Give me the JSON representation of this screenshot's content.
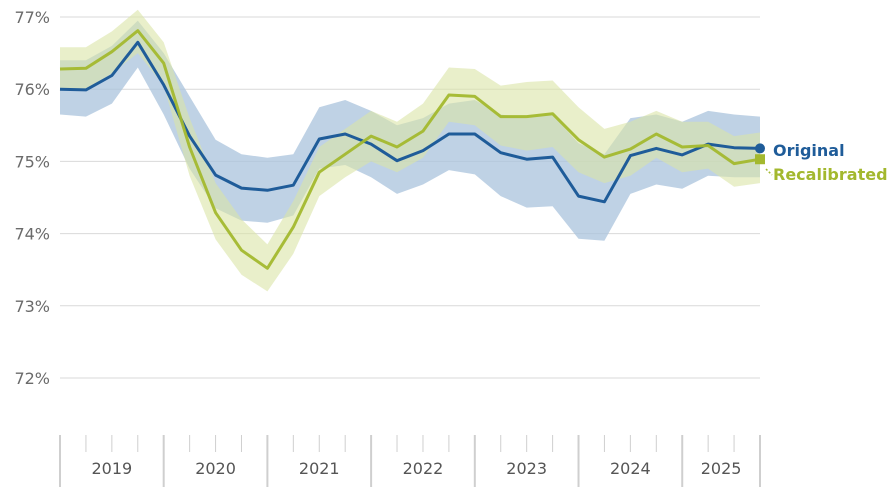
{
  "chart_data": {
    "type": "line",
    "title": "",
    "xlabel": "",
    "ylabel": "",
    "ylim": [
      72,
      77
    ],
    "y_ticks": [
      "72%",
      "73%",
      "74%",
      "75%",
      "76%",
      "77%"
    ],
    "grid": true,
    "legend_placement": "right, at line ends",
    "year_labels": [
      "2019",
      "2020",
      "2021",
      "2022",
      "2023",
      "2024",
      "2025"
    ],
    "periods_per_year": 4,
    "start_year": 2019,
    "series": [
      {
        "name": "Original",
        "color": "#1f5c99",
        "band_color": "#a9c3dc",
        "values": [
          76.0,
          75.99,
          76.19,
          76.65,
          76.06,
          75.35,
          74.81,
          74.63,
          74.6,
          74.67,
          75.31,
          75.38,
          75.24,
          75.01,
          75.15,
          75.38,
          75.38,
          75.12,
          75.03,
          75.06,
          74.52,
          74.44,
          75.08,
          75.18,
          75.09,
          75.24,
          75.19,
          75.18
        ],
        "upper": [
          76.4,
          76.4,
          76.6,
          76.95,
          76.5,
          75.9,
          75.3,
          75.1,
          75.05,
          75.1,
          75.75,
          75.85,
          75.7,
          75.5,
          75.6,
          75.8,
          75.85,
          75.65,
          75.6,
          75.65,
          75.25,
          75.1,
          75.6,
          75.65,
          75.55,
          75.7,
          75.65,
          75.62
        ],
        "lower": [
          75.65,
          75.62,
          75.8,
          76.3,
          75.65,
          74.9,
          74.35,
          74.18,
          74.15,
          74.25,
          74.9,
          74.95,
          74.78,
          74.55,
          74.68,
          74.88,
          74.82,
          74.52,
          74.36,
          74.38,
          73.93,
          73.9,
          74.55,
          74.68,
          74.62,
          74.8,
          74.78,
          74.78
        ]
      },
      {
        "name": "Recalibrated",
        "color": "#a3b82e",
        "band_color": "#dbe5a6",
        "values": [
          76.28,
          76.29,
          76.52,
          76.81,
          76.36,
          75.2,
          74.29,
          73.77,
          73.52,
          74.09,
          74.85,
          75.1,
          75.35,
          75.2,
          75.42,
          75.92,
          75.9,
          75.62,
          75.62,
          75.66,
          75.3,
          75.06,
          75.17,
          75.38,
          75.2,
          75.22,
          74.97,
          75.03
        ],
        "upper": [
          76.58,
          76.58,
          76.8,
          77.1,
          76.65,
          75.6,
          74.7,
          74.2,
          73.85,
          74.45,
          75.2,
          75.45,
          75.7,
          75.55,
          75.8,
          76.3,
          76.28,
          76.05,
          76.1,
          76.12,
          75.75,
          75.45,
          75.55,
          75.7,
          75.55,
          75.55,
          75.35,
          75.4
        ],
        "lower": [
          75.98,
          76.0,
          76.22,
          76.5,
          76.05,
          74.8,
          73.92,
          73.43,
          73.2,
          73.72,
          74.52,
          74.78,
          75.0,
          74.85,
          75.05,
          75.55,
          75.5,
          75.22,
          75.15,
          75.2,
          74.85,
          74.7,
          74.8,
          75.05,
          74.85,
          74.9,
          74.65,
          74.7
        ]
      }
    ]
  }
}
